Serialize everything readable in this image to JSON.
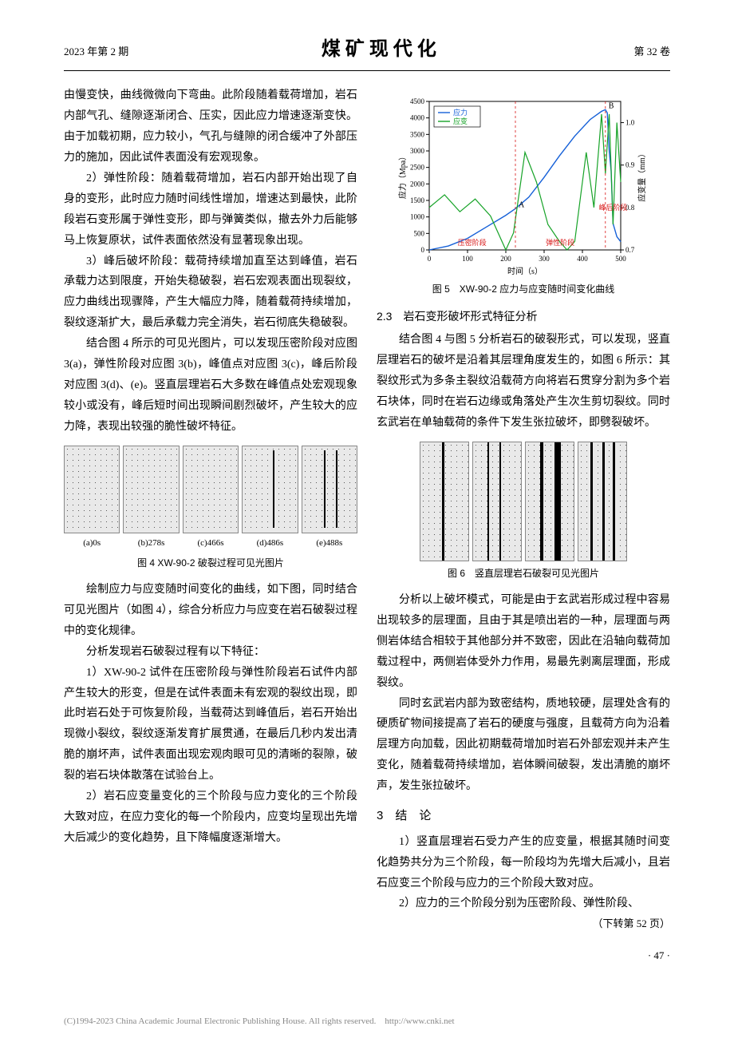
{
  "header": {
    "left": "2023 年第 2 期",
    "center": "煤矿现代化",
    "right": "第 32 卷"
  },
  "leftCol": {
    "p_intro": "由慢变快，曲线微微向下弯曲。此阶段随着载荷增加，岩石内部气孔、缝隙逐渐闭合、压实，因此应力增速逐渐变快。由于加载初期，应力较小，气孔与缝隙的闭合缓冲了外部压力的施加，因此试件表面没有宏观现象。",
    "p2": "2）弹性阶段：随着载荷增加，岩石内部开始出现了自身的变形，此时应力随时间线性增加，增速达到最快，此阶段岩石变形属于弹性变形，即与弹簧类似，撤去外力后能够马上恢复原状，试件表面依然没有显著现象出现。",
    "p3": "3）峰后破坏阶段：载荷持续增加直至达到峰值，岩石承载力达到限度，开始失稳破裂，岩石宏观表面出现裂纹，应力曲线出现骤降，产生大幅应力降，随着载荷持续增加，裂纹逐渐扩大，最后承载力完全消失，岩石彻底失稳破裂。",
    "p4": "结合图 4 所示的可见光图片，可以发现压密阶段对应图 3(a)，弹性阶段对应图 3(b)，峰值点对应图 3(c)，峰后阶段对应图 3(d)、(e)。竖直层理岩石大多数在峰值点处宏观现象较小或没有，峰后短时间出现瞬间剧烈破坏，产生较大的应力降，表现出较强的脆性破坏特征。",
    "fig4": {
      "items": [
        {
          "label": "(a)0s"
        },
        {
          "label": "(b)278s"
        },
        {
          "label": "(c)466s"
        },
        {
          "label": "(d)486s"
        },
        {
          "label": "(e)488s"
        }
      ],
      "caption": "图 4 XW-90-2 破裂过程可见光图片"
    },
    "p5": "绘制应力与应变随时间变化的曲线，如下图，同时结合可见光图片（如图 4），综合分析应力与应变在岩石破裂过程中的变化规律。",
    "p6": "分析发现岩石破裂过程有以下特征：",
    "p7": "1）XW-90-2 试件在压密阶段与弹性阶段岩石试件内部产生较大的形变，但是在试件表面未有宏观的裂纹出现，即此时岩石处于可恢复阶段，当载荷达到峰值后，岩石开始出现微小裂纹，裂纹逐渐发育扩展贯通，在最后几秒内发出清脆的崩坏声，试件表面出现宏观肉眼可见的清晰的裂隙，破裂的岩石块体散落在试验台上。",
    "p8": "2）岩石应变量变化的三个阶段与应力变化的三个阶段大致对应，在应力变化的每一个阶段内，应变均呈现出先增大后减少的变化趋势，且下降幅度逐渐增大。"
  },
  "rightCol": {
    "chart5": {
      "legend": {
        "stress": "应力",
        "strain": "应变"
      },
      "xlabel": "时间（s）",
      "y1label": "应力（Mpa）",
      "y2label": "应变量（mm）",
      "xticks": [
        0,
        100,
        200,
        300,
        400,
        500
      ],
      "y1ticks": [
        0,
        500,
        1000,
        1500,
        2000,
        2500,
        3000,
        3500,
        4000,
        4500
      ],
      "y2ticks": [
        0.7,
        0.8,
        0.9,
        1.0
      ],
      "stress_color": "#1560d8",
      "strain_color": "#17a328",
      "anno_color": "#d81515",
      "stress_points": [
        [
          0,
          0
        ],
        [
          50,
          120
        ],
        [
          100,
          350
        ],
        [
          150,
          700
        ],
        [
          200,
          1050
        ],
        [
          225,
          1250
        ],
        [
          260,
          1600
        ],
        [
          300,
          2200
        ],
        [
          340,
          2850
        ],
        [
          380,
          3450
        ],
        [
          420,
          3950
        ],
        [
          450,
          4200
        ],
        [
          460,
          4250
        ],
        [
          465,
          4150
        ],
        [
          470,
          3000
        ],
        [
          475,
          2400
        ],
        [
          480,
          800
        ],
        [
          490,
          400
        ],
        [
          500,
          250
        ]
      ],
      "strain_points": [
        [
          0,
          0.8
        ],
        [
          40,
          0.83
        ],
        [
          80,
          0.79
        ],
        [
          120,
          0.82
        ],
        [
          160,
          0.78
        ],
        [
          200,
          0.7
        ],
        [
          220,
          0.74
        ],
        [
          250,
          0.93
        ],
        [
          280,
          0.86
        ],
        [
          310,
          0.76
        ],
        [
          340,
          0.72
        ],
        [
          360,
          0.7
        ],
        [
          380,
          0.72
        ],
        [
          410,
          0.93
        ],
        [
          430,
          0.8
        ],
        [
          450,
          1.02
        ],
        [
          460,
          0.88
        ],
        [
          470,
          1.02
        ],
        [
          480,
          0.76
        ],
        [
          490,
          1.0
        ],
        [
          500,
          0.86
        ]
      ],
      "annotations": {
        "A": "A",
        "B": "B",
        "stage1": "压密阶段",
        "stage2": "弹性阶段",
        "stage3": "峰后阶段"
      },
      "caption": "图 5　XW-90-2 应力与应变随时间变化曲线"
    },
    "sub23_title": "2.3　岩石变形破坏形式特征分析",
    "p_r1": "结合图 4 与图 5 分析岩石的破裂形式，可以发现，竖直层理岩石的破坏是沿着其层理角度发生的，如图 6 所示：其裂纹形式为多条主裂纹沿载荷方向将岩石贯穿分割为多个岩石块体，同时在岩石边缘或角落处产生次生剪切裂纹。同时玄武岩在单轴载荷的条件下发生张拉破坏，即劈裂破坏。",
    "fig6_caption": "图 6　竖直层理岩石破裂可见光图片",
    "p_r2": "分析以上破坏模式，可能是由于玄武岩形成过程中容易出现较多的层理面，且由于其是喷出岩的一种，层理面与两侧岩体结合相较于其他部分并不致密，因此在沿轴向载荷加载过程中，两侧岩体受外力作用，易最先剥离层理面，形成裂纹。",
    "p_r3": "同时玄武岩内部为致密结构，质地较硬，层理处含有的硬质矿物间接提高了岩石的硬度与强度，且载荷方向为沿着层理方向加载，因此初期载荷增加时岩石外部宏观并未产生变化，随着载荷持续增加，岩体瞬间破裂，发出清脆的崩坏声，发生张拉破坏。",
    "sec3_title": "3　结　论",
    "p_c1": "1）竖直层理岩石受力产生的应变量，根据其随时间变化趋势共分为三个阶段，每一阶段均为先增大后减小，且岩石应变三个阶段与应力的三个阶段大致对应。",
    "p_c2": "2）应力的三个阶段分别为压密阶段、弹性阶段、",
    "cont_note": "（下转第 52 页）"
  },
  "pageNum": "· 47 ·",
  "bottom": "(C)1994-2023 China Academic Journal Electronic Publishing House. All rights reserved.　http://www.cnki.net"
}
